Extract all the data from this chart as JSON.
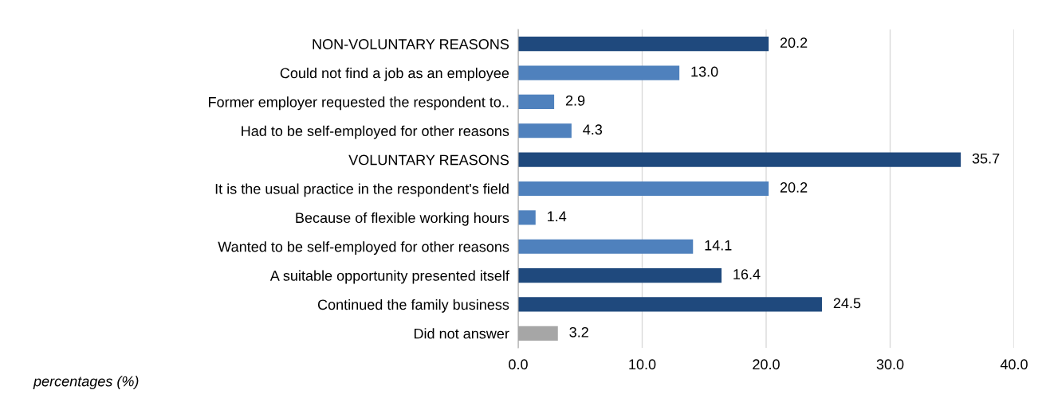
{
  "chart_data": {
    "type": "bar",
    "orientation": "horizontal",
    "categories": [
      "NON-VOLUNTARY REASONS",
      "Could not find a job as an employee",
      "Former employer requested the respondent to..",
      "Had to be self-employed for other reasons",
      "VOLUNTARY REASONS",
      "It is the usual practice in the respondent's field",
      "Because of flexible working hours",
      "Wanted to be self-employed for other reasons",
      "A suitable opportunity presented itself",
      "Continued the family business",
      "Did not answer"
    ],
    "values": [
      20.2,
      13.0,
      2.9,
      4.3,
      35.7,
      20.2,
      1.4,
      14.1,
      16.4,
      24.5,
      3.2
    ],
    "value_labels": [
      "20.2",
      "13.0",
      "2.9",
      "4.3",
      "35.7",
      "20.2",
      "1.4",
      "14.1",
      "16.4",
      "24.5",
      "3.2"
    ],
    "colors": [
      "#1f497d",
      "#4f81bd",
      "#4f81bd",
      "#4f81bd",
      "#1f497d",
      "#4f81bd",
      "#4f81bd",
      "#4f81bd",
      "#1f497d",
      "#1f497d",
      "#a6a6a6"
    ],
    "xlim": [
      0,
      40
    ],
    "xticks": [
      {
        "value": 0,
        "label": "0.0"
      },
      {
        "value": 10,
        "label": "10.0"
      },
      {
        "value": 20,
        "label": "20.0"
      },
      {
        "value": 30,
        "label": "30.0"
      },
      {
        "value": 40,
        "label": "40.0"
      }
    ],
    "grid": "x",
    "annotations": [
      "percentages (%)"
    ]
  }
}
